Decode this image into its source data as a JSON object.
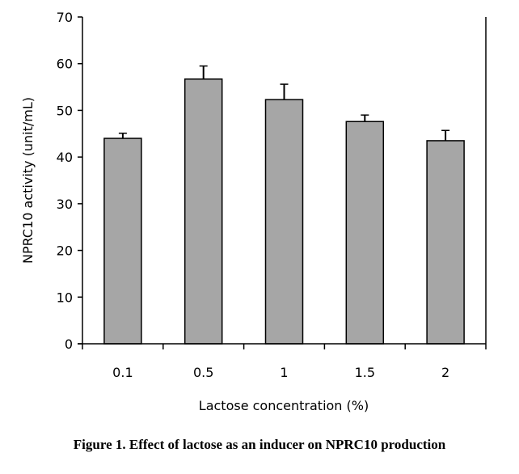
{
  "caption": "Figure 1. Effect of lactose as an inducer on NPRC10 production",
  "chart_data": {
    "type": "bar",
    "title": "",
    "xlabel": "Lactose concentration  (%)",
    "ylabel": "NPRC10 activity  (unit/mL)",
    "categories": [
      "0.1",
      "0.5",
      "1",
      "1.5",
      "2"
    ],
    "values": [
      44.0,
      56.7,
      52.3,
      47.6,
      43.5
    ],
    "errors": [
      1.1,
      2.8,
      3.3,
      1.4,
      2.2
    ],
    "ylim": [
      0,
      70
    ],
    "yticks": [
      0,
      10,
      20,
      30,
      40,
      50,
      60,
      70
    ],
    "grid": false,
    "bar_color": "#a6a6a6",
    "edge_color": "#000000"
  }
}
